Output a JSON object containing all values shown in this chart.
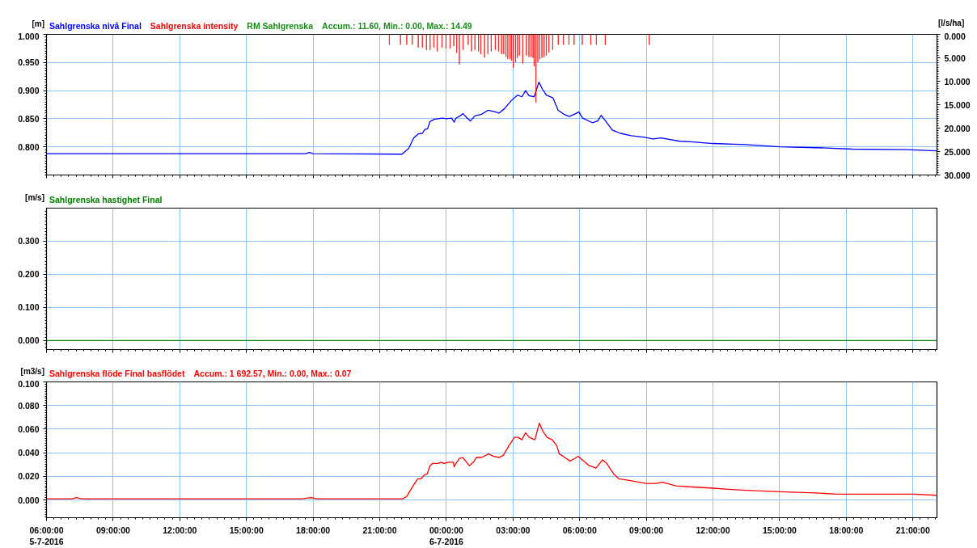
{
  "chart_data": [
    {
      "type": "line",
      "ylabel": "[m]",
      "y2label": "[l/s/ha]",
      "grid": true,
      "tick_labels": "y",
      "annotations": [
        "RM Sahlgrenska",
        "Accum.: 11.60, Min.: 0.00, Max.: 14.49"
      ],
      "xlim": [
        "2016-07-05T06:00",
        "2016-07-06T22:05"
      ],
      "xticks": [
        {
          "value": "2016-07-05T06:00",
          "label": null
        },
        {
          "value": "2016-07-05T09:00",
          "label": null
        },
        {
          "value": "2016-07-05T12:00",
          "label": null
        },
        {
          "value": "2016-07-05T15:00",
          "label": null
        },
        {
          "value": "2016-07-05T18:00",
          "label": null
        },
        {
          "value": "2016-07-05T21:00",
          "label": null
        },
        {
          "value": "2016-07-06T00:00",
          "label": null
        },
        {
          "value": "2016-07-06T03:00",
          "label": null
        },
        {
          "value": "2016-07-06T06:00",
          "label": null
        },
        {
          "value": "2016-07-06T09:00",
          "label": null
        },
        {
          "value": "2016-07-06T12:00",
          "label": null
        },
        {
          "value": "2016-07-06T15:00",
          "label": null
        },
        {
          "value": "2016-07-06T18:00",
          "label": null
        },
        {
          "value": "2016-07-06T21:00",
          "label": null
        }
      ],
      "ylim": [
        0.75,
        1.0
      ],
      "yticks": [
        {
          "value": 0.8,
          "label": "0.800"
        },
        {
          "value": 0.85,
          "label": "0.850"
        },
        {
          "value": 0.9,
          "label": "0.900"
        },
        {
          "value": 0.95,
          "label": "0.950"
        },
        {
          "value": 1.0,
          "label": "1.000"
        }
      ],
      "y2lim": [
        30,
        0
      ],
      "y2ticks": [
        {
          "value": 0,
          "label": "0.000"
        },
        {
          "value": 5,
          "label": "5.000"
        },
        {
          "value": 10,
          "label": "10.000"
        },
        {
          "value": 15,
          "label": "15.000"
        },
        {
          "value": 20,
          "label": "20.000"
        },
        {
          "value": 25,
          "label": "25.000"
        },
        {
          "value": 30,
          "label": "30.000"
        }
      ],
      "series": [
        {
          "name": "Sahlgrenska nivå Final",
          "color": "#0000ff",
          "x": [
            "2016-07-05T06:00",
            "2016-07-05T17:40",
            "2016-07-05T17:50",
            "2016-07-05T18:00",
            "2016-07-05T22:00",
            "2016-07-05T22:18",
            "2016-07-05T22:32",
            "2016-07-05T22:44",
            "2016-07-05T22:55",
            "2016-07-05T23:02",
            "2016-07-05T23:09",
            "2016-07-05T23:16",
            "2016-07-05T23:27",
            "2016-07-05T23:38",
            "2016-07-05T23:49",
            "2016-07-06T00:00",
            "2016-07-06T00:14",
            "2016-07-06T00:21",
            "2016-07-06T00:26",
            "2016-07-06T00:37",
            "2016-07-06T00:45",
            "2016-07-06T00:55",
            "2016-07-06T01:05",
            "2016-07-06T01:17",
            "2016-07-06T01:35",
            "2016-07-06T01:52",
            "2016-07-06T02:08",
            "2016-07-06T02:22",
            "2016-07-06T02:37",
            "2016-07-06T02:55",
            "2016-07-06T03:12",
            "2016-07-06T03:24",
            "2016-07-06T03:34",
            "2016-07-06T03:43",
            "2016-07-06T03:57",
            "2016-07-06T04:10",
            "2016-07-06T04:19",
            "2016-07-06T04:30",
            "2016-07-06T04:48",
            "2016-07-06T05:02",
            "2016-07-06T05:17",
            "2016-07-06T05:32",
            "2016-07-06T05:45",
            "2016-07-06T05:58",
            "2016-07-06T06:08",
            "2016-07-06T06:34",
            "2016-07-06T06:49",
            "2016-07-06T06:58",
            "2016-07-06T07:10",
            "2016-07-06T07:28",
            "2016-07-06T07:50",
            "2016-07-06T08:19",
            "2016-07-06T08:56",
            "2016-07-06T09:18",
            "2016-07-06T09:40",
            "2016-07-06T10:30",
            "2016-07-06T11:00",
            "2016-07-06T12:00",
            "2016-07-06T13:26",
            "2016-07-06T15:00",
            "2016-07-06T17:05",
            "2016-07-06T18:17",
            "2016-07-06T20:43",
            "2016-07-06T22:04"
          ],
          "values": [
            0.788,
            0.788,
            0.79,
            0.788,
            0.787,
            0.797,
            0.816,
            0.823,
            0.824,
            0.831,
            0.832,
            0.845,
            0.849,
            0.85,
            0.851,
            0.85,
            0.851,
            0.844,
            0.851,
            0.855,
            0.859,
            0.852,
            0.846,
            0.855,
            0.858,
            0.865,
            0.863,
            0.86,
            0.868,
            0.882,
            0.892,
            0.889,
            0.9,
            0.891,
            0.889,
            0.915,
            0.903,
            0.892,
            0.887,
            0.865,
            0.858,
            0.854,
            0.858,
            0.862,
            0.851,
            0.843,
            0.846,
            0.856,
            0.846,
            0.83,
            0.824,
            0.82,
            0.817,
            0.814,
            0.816,
            0.81,
            0.809,
            0.806,
            0.804,
            0.8,
            0.798,
            0.796,
            0.795,
            0.793
          ]
        },
        {
          "name": "Sahlgrenska intensity",
          "type": "bar",
          "axis": "y2",
          "color": "#ff0000",
          "x": [
            "2016-07-05T21:26",
            "2016-07-05T21:56",
            "2016-07-05T22:13",
            "2016-07-05T22:28",
            "2016-07-05T22:44",
            "2016-07-05T22:55",
            "2016-07-05T23:06",
            "2016-07-05T23:16",
            "2016-07-05T23:26",
            "2016-07-05T23:35",
            "2016-07-05T23:48",
            "2016-07-05T23:59",
            "2016-07-06T00:10",
            "2016-07-06T00:20",
            "2016-07-06T00:28",
            "2016-07-06T00:35",
            "2016-07-06T00:45",
            "2016-07-06T00:59",
            "2016-07-06T01:08",
            "2016-07-06T01:17",
            "2016-07-06T01:27",
            "2016-07-06T01:33",
            "2016-07-06T01:43",
            "2016-07-06T01:52",
            "2016-07-06T02:01",
            "2016-07-06T02:12",
            "2016-07-06T02:21",
            "2016-07-06T02:29",
            "2016-07-06T02:35",
            "2016-07-06T02:41",
            "2016-07-06T02:46",
            "2016-07-06T02:52",
            "2016-07-06T02:56",
            "2016-07-06T03:01",
            "2016-07-06T03:07",
            "2016-07-06T03:12",
            "2016-07-06T03:17",
            "2016-07-06T03:26",
            "2016-07-06T03:36",
            "2016-07-06T03:43",
            "2016-07-06T03:49",
            "2016-07-06T03:54",
            "2016-07-06T03:57",
            "2016-07-06T04:02",
            "2016-07-06T04:07",
            "2016-07-06T04:12",
            "2016-07-06T04:18",
            "2016-07-06T04:24",
            "2016-07-06T04:30",
            "2016-07-06T04:37",
            "2016-07-06T04:47",
            "2016-07-06T05:02",
            "2016-07-06T05:16",
            "2016-07-06T05:31",
            "2016-07-06T05:45",
            "2016-07-06T06:07",
            "2016-07-06T06:30",
            "2016-07-06T06:45",
            "2016-07-06T07:09",
            "2016-07-06T09:08"
          ],
          "values": [
            2.2,
            2.2,
            2.2,
            2.2,
            2.8,
            2.8,
            3.3,
            3.3,
            2.8,
            3.6,
            2.8,
            3.0,
            3.0,
            2.5,
            3.9,
            6.4,
            3.3,
            2.2,
            3.6,
            3.3,
            3.6,
            4.2,
            4.9,
            4.2,
            3.6,
            3.3,
            3.6,
            4.2,
            4.2,
            4.8,
            5.2,
            5.2,
            5.6,
            7.1,
            5.9,
            5.0,
            4.5,
            6.2,
            4.5,
            4.8,
            4.8,
            5.0,
            6.8,
            14.5,
            5.9,
            5.3,
            5.0,
            4.8,
            4.5,
            3.9,
            3.3,
            2.2,
            2.2,
            2.2,
            2.2,
            2.2,
            2.2,
            2.2,
            2.2,
            2.2
          ]
        }
      ]
    },
    {
      "type": "line",
      "ylabel": "[m/s]",
      "grid": true,
      "tick_labels": "y",
      "xlim": [
        "2016-07-05T06:00",
        "2016-07-06T22:05"
      ],
      "xticks": [
        {
          "value": "2016-07-05T06:00",
          "label": null
        },
        {
          "value": "2016-07-05T09:00",
          "label": null
        },
        {
          "value": "2016-07-05T12:00",
          "label": null
        },
        {
          "value": "2016-07-05T15:00",
          "label": null
        },
        {
          "value": "2016-07-05T18:00",
          "label": null
        },
        {
          "value": "2016-07-05T21:00",
          "label": null
        },
        {
          "value": "2016-07-06T00:00",
          "label": null
        },
        {
          "value": "2016-07-06T03:00",
          "label": null
        },
        {
          "value": "2016-07-06T06:00",
          "label": null
        },
        {
          "value": "2016-07-06T09:00",
          "label": null
        },
        {
          "value": "2016-07-06T12:00",
          "label": null
        },
        {
          "value": "2016-07-06T15:00",
          "label": null
        },
        {
          "value": "2016-07-06T18:00",
          "label": null
        },
        {
          "value": "2016-07-06T21:00",
          "label": null
        }
      ],
      "ylim": [
        -0.027,
        0.4
      ],
      "yticks": [
        {
          "value": 0,
          "label": "0.000"
        },
        {
          "value": 0.1,
          "label": "0.100"
        },
        {
          "value": 0.2,
          "label": "0.200"
        },
        {
          "value": 0.3,
          "label": "0.300"
        }
      ],
      "series": [
        {
          "name": "Sahlgrenska hastighet Final",
          "color": "#008000",
          "x": [
            "2016-07-05T06:00",
            "2016-07-05T12:00",
            "2016-07-05T18:00",
            "2016-07-06T00:00",
            "2016-07-06T06:00",
            "2016-07-06T12:00",
            "2016-07-06T18:00",
            "2016-07-06T22:04"
          ],
          "values": [
            0,
            0,
            0,
            0,
            0,
            0,
            0,
            0
          ]
        }
      ]
    },
    {
      "type": "line",
      "ylabel": "[m3/s]",
      "grid": true,
      "annotations": [
        "Accum.: 1 692.57, Min.: 0.00, Max.: 0.07"
      ],
      "xlim": [
        "2016-07-05T06:00",
        "2016-07-06T22:05"
      ],
      "xticks": [
        {
          "value": "2016-07-05T06:00",
          "label": "06:00:00\n5-7-2016"
        },
        {
          "value": "2016-07-05T09:00",
          "label": "09:00:00"
        },
        {
          "value": "2016-07-05T12:00",
          "label": "12:00:00"
        },
        {
          "value": "2016-07-05T15:00",
          "label": "15:00:00"
        },
        {
          "value": "2016-07-05T18:00",
          "label": "18:00:00"
        },
        {
          "value": "2016-07-05T21:00",
          "label": "21:00:00"
        },
        {
          "value": "2016-07-06T00:00",
          "label": "00:00:00\n6-7-2016"
        },
        {
          "value": "2016-07-06T03:00",
          "label": "03:00:00"
        },
        {
          "value": "2016-07-06T06:00",
          "label": "06:00:00"
        },
        {
          "value": "2016-07-06T09:00",
          "label": "09:00:00"
        },
        {
          "value": "2016-07-06T12:00",
          "label": "12:00:00"
        },
        {
          "value": "2016-07-06T15:00",
          "label": "15:00:00"
        },
        {
          "value": "2016-07-06T18:00",
          "label": "18:00:00"
        },
        {
          "value": "2016-07-06T21:00",
          "label": "21:00:00"
        }
      ],
      "ylim": [
        -0.015,
        0.1
      ],
      "yticks": [
        {
          "value": 0,
          "label": "0.000"
        },
        {
          "value": 0.02,
          "label": "0.020"
        },
        {
          "value": 0.04,
          "label": "0.040"
        },
        {
          "value": 0.06,
          "label": "0.060"
        },
        {
          "value": 0.08,
          "label": "0.080"
        },
        {
          "value": 0.1,
          "label": "0.100"
        }
      ],
      "series": [
        {
          "name": "Sahlgrenska flöde Final basflödet",
          "color": "#ff0000",
          "x": [
            "2016-07-05T06:00",
            "2016-07-05T07:10",
            "2016-07-05T07:20",
            "2016-07-05T07:35",
            "2016-07-05T13:00",
            "2016-07-05T17:30",
            "2016-07-05T17:55",
            "2016-07-05T18:10",
            "2016-07-05T22:02",
            "2016-07-05T22:13",
            "2016-07-05T22:32",
            "2016-07-05T22:43",
            "2016-07-05T22:52",
            "2016-07-05T23:00",
            "2016-07-05T23:08",
            "2016-07-05T23:16",
            "2016-07-05T23:23",
            "2016-07-05T23:31",
            "2016-07-05T23:38",
            "2016-07-05T23:46",
            "2016-07-05T23:53",
            "2016-07-06T00:07",
            "2016-07-06T00:19",
            "2016-07-06T00:21",
            "2016-07-06T00:26",
            "2016-07-06T00:35",
            "2016-07-06T00:44",
            "2016-07-06T00:52",
            "2016-07-06T01:02",
            "2016-07-06T01:13",
            "2016-07-06T01:21",
            "2016-07-06T01:35",
            "2016-07-06T01:54",
            "2016-07-06T02:08",
            "2016-07-06T02:23",
            "2016-07-06T02:34",
            "2016-07-06T02:49",
            "2016-07-06T03:04",
            "2016-07-06T03:14",
            "2016-07-06T03:24",
            "2016-07-06T03:34",
            "2016-07-06T03:44",
            "2016-07-06T03:59",
            "2016-07-06T04:11",
            "2016-07-06T04:21",
            "2016-07-06T04:32",
            "2016-07-06T04:46",
            "2016-07-06T04:58",
            "2016-07-06T05:05",
            "2016-07-06T05:20",
            "2016-07-06T05:34",
            "2016-07-06T05:46",
            "2016-07-06T05:56",
            "2016-07-06T06:07",
            "2016-07-06T06:26",
            "2016-07-06T06:44",
            "2016-07-06T07:02",
            "2016-07-06T07:13",
            "2016-07-06T07:32",
            "2016-07-06T07:46",
            "2016-07-06T08:23",
            "2016-07-06T08:59",
            "2016-07-06T09:25",
            "2016-07-06T09:44",
            "2016-07-06T10:20",
            "2016-07-06T11:05",
            "2016-07-06T12:00",
            "2016-07-06T12:42",
            "2016-07-06T13:40",
            "2016-07-06T15:00",
            "2016-07-06T16:36",
            "2016-07-06T17:34",
            "2016-07-06T19:24",
            "2016-07-06T21:00",
            "2016-07-06T22:04"
          ],
          "values": [
            0.001,
            0.001,
            0.002,
            0.001,
            0.001,
            0.001,
            0.002,
            0.001,
            0.001,
            0.003,
            0.013,
            0.018,
            0.018,
            0.021,
            0.022,
            0.029,
            0.031,
            0.031,
            0.031,
            0.032,
            0.031,
            0.032,
            0.032,
            0.028,
            0.031,
            0.035,
            0.036,
            0.033,
            0.029,
            0.032,
            0.036,
            0.036,
            0.039,
            0.037,
            0.036,
            0.038,
            0.046,
            0.053,
            0.053,
            0.051,
            0.057,
            0.053,
            0.051,
            0.065,
            0.058,
            0.053,
            0.051,
            0.046,
            0.039,
            0.036,
            0.033,
            0.035,
            0.037,
            0.034,
            0.029,
            0.027,
            0.034,
            0.031,
            0.022,
            0.018,
            0.016,
            0.014,
            0.014,
            0.015,
            0.012,
            0.011,
            0.01,
            0.009,
            0.008,
            0.007,
            0.006,
            0.005,
            0.005,
            0.005,
            0.004
          ]
        }
      ]
    }
  ]
}
